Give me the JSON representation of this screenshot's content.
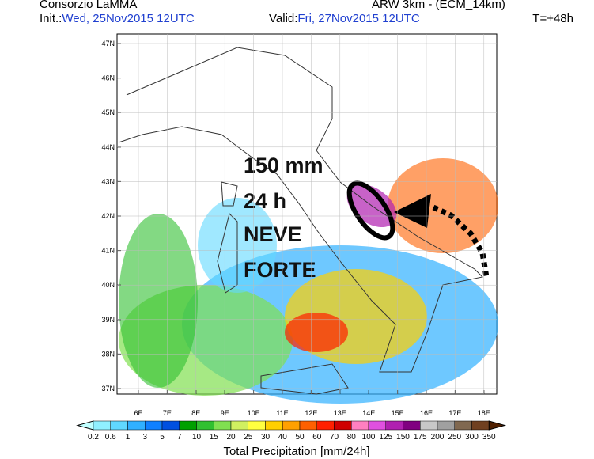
{
  "header": {
    "org": "Consorzio LaMMA",
    "model": "ARW 3km - (ECM_14km)",
    "init_label": "Init.:",
    "init_time": "Wed, 25Nov2015 12UTC",
    "valid_label": "Valid:",
    "valid_time": "Fri, 27Nov2015 12UTC",
    "lead": "T=+48h"
  },
  "map": {
    "lat_labels": [
      "47N",
      "46N",
      "45N",
      "44N",
      "43N",
      "42N",
      "41N",
      "40N",
      "39N",
      "38N",
      "37N"
    ],
    "lon_labels": [
      "6E",
      "7E",
      "8E",
      "9E",
      "10E",
      "11E",
      "12E",
      "13E",
      "14E",
      "15E",
      "16E",
      "17E",
      "18E"
    ],
    "annotations": [
      "150 mm",
      "24 h",
      "NEVE",
      "FORTE"
    ]
  },
  "legend": {
    "title": "Total Precipitation [mm/24h]",
    "labels": [
      0.2,
      0.6,
      1,
      3,
      5,
      7,
      10,
      15,
      20,
      25,
      30,
      40,
      50,
      60,
      70,
      80,
      100,
      125,
      150,
      175,
      200,
      250,
      300,
      350
    ],
    "colors": [
      "#c0ffff",
      "#90f0ff",
      "#60d8ff",
      "#30b0ff",
      "#1080ff",
      "#0050e0",
      "#00a000",
      "#30c030",
      "#80e050",
      "#d0f060",
      "#ffff40",
      "#ffd000",
      "#ffa000",
      "#ff6000",
      "#ff2000",
      "#d00000",
      "#ff80c0",
      "#e050e0",
      "#b020b0",
      "#800080",
      "#c8c8c8",
      "#a0a0a0",
      "#806850",
      "#704020",
      "#502000"
    ]
  }
}
